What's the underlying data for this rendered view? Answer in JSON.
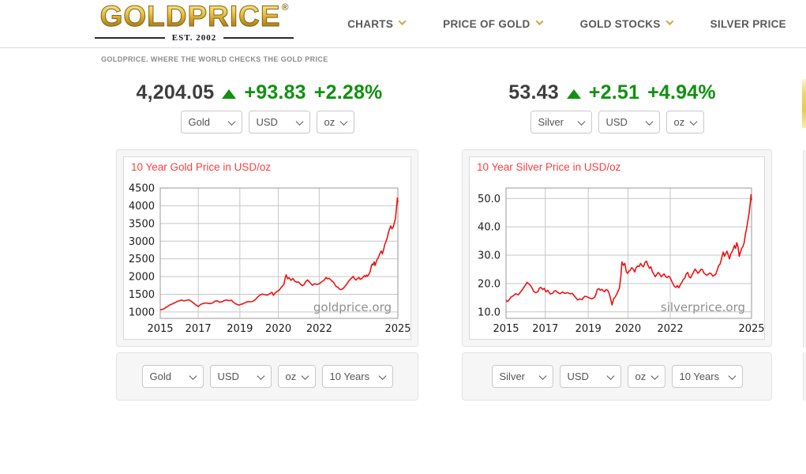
{
  "header": {
    "logo": {
      "text": "GOLDPRICE",
      "reg": "®",
      "est": "EST. 2002"
    },
    "nav": [
      {
        "label": "CHARTS",
        "has_dropdown": true
      },
      {
        "label": "PRICE OF GOLD",
        "has_dropdown": true
      },
      {
        "label": "GOLD STOCKS",
        "has_dropdown": true
      },
      {
        "label": "SILVER PRICE",
        "has_dropdown": false
      }
    ]
  },
  "tagline": "GOLDPRICE. WHERE THE WORLD CHECKS THE GOLD PRICE",
  "colors": {
    "green_up": "#119111",
    "price_text": "#3e3e3e",
    "chart_line_red": "#ee1212",
    "chart_title_red": "#f94141",
    "gold_accent": "#d1a83d",
    "panel_gray": "#f6f6f6"
  },
  "gold": {
    "price": "4,204.05",
    "change": "+93.83",
    "change_pct": "+2.28%",
    "selects_top": [
      "Gold",
      "USD",
      "oz"
    ],
    "selects_bottom": [
      "Gold",
      "USD",
      "oz",
      "10 Years"
    ]
  },
  "silver": {
    "price": "53.43",
    "change": "+2.51",
    "change_pct": "+4.94%",
    "selects_top": [
      "Silver",
      "USD",
      "oz"
    ],
    "selects_bottom": [
      "Silver",
      "USD",
      "oz",
      "10 Years"
    ]
  },
  "chart_data": [
    {
      "type": "line",
      "title": "10 Year Gold Price in USD/oz",
      "watermark": "goldprice.org",
      "line_color": "#ee1212",
      "grid": true,
      "x_ticks": [
        {
          "f": 0,
          "label": "2015"
        },
        {
          "f": 0.16,
          "label": "2017"
        },
        {
          "f": 0.335,
          "label": "2019"
        },
        {
          "f": 0.497,
          "label": "2020"
        },
        {
          "f": 0.669,
          "label": "2022"
        },
        {
          "f": 1,
          "label": "2025"
        }
      ],
      "y_ticks": [
        {
          "v": 1000,
          "label": "1000"
        },
        {
          "v": 1500,
          "label": "1500"
        },
        {
          "v": 2000,
          "label": "2000"
        },
        {
          "v": 2500,
          "label": "2500"
        },
        {
          "v": 3000,
          "label": "3000"
        },
        {
          "v": 3500,
          "label": "3500"
        },
        {
          "v": 4000,
          "label": "4000"
        },
        {
          "v": 4500,
          "label": "4500"
        }
      ],
      "y_range": [
        820,
        4500
      ],
      "points": [
        [
          0,
          1060
        ],
        [
          0.008,
          1072
        ],
        [
          0.015,
          1088
        ],
        [
          0.022,
          1118
        ],
        [
          0.03,
          1152
        ],
        [
          0.04,
          1198
        ],
        [
          0.05,
          1224
        ],
        [
          0.06,
          1258
        ],
        [
          0.07,
          1292
        ],
        [
          0.08,
          1318
        ],
        [
          0.09,
          1336
        ],
        [
          0.1,
          1312
        ],
        [
          0.11,
          1330
        ],
        [
          0.12,
          1344
        ],
        [
          0.13,
          1306
        ],
        [
          0.14,
          1256
        ],
        [
          0.15,
          1196
        ],
        [
          0.16,
          1154
        ],
        [
          0.17,
          1214
        ],
        [
          0.18,
          1236
        ],
        [
          0.19,
          1254
        ],
        [
          0.2,
          1248
        ],
        [
          0.21,
          1236
        ],
        [
          0.22,
          1256
        ],
        [
          0.23,
          1304
        ],
        [
          0.24,
          1316
        ],
        [
          0.25,
          1276
        ],
        [
          0.26,
          1292
        ],
        [
          0.27,
          1326
        ],
        [
          0.28,
          1342
        ],
        [
          0.29,
          1318
        ],
        [
          0.3,
          1332
        ],
        [
          0.305,
          1292
        ],
        [
          0.31,
          1266
        ],
        [
          0.32,
          1224
        ],
        [
          0.33,
          1194
        ],
        [
          0.34,
          1216
        ],
        [
          0.35,
          1236
        ],
        [
          0.36,
          1276
        ],
        [
          0.37,
          1296
        ],
        [
          0.38,
          1288
        ],
        [
          0.39,
          1302
        ],
        [
          0.4,
          1346
        ],
        [
          0.41,
          1422
        ],
        [
          0.42,
          1482
        ],
        [
          0.43,
          1506
        ],
        [
          0.44,
          1488
        ],
        [
          0.45,
          1474
        ],
        [
          0.46,
          1516
        ],
        [
          0.47,
          1556
        ],
        [
          0.476,
          1472
        ],
        [
          0.482,
          1524
        ],
        [
          0.49,
          1576
        ],
        [
          0.5,
          1612
        ],
        [
          0.508,
          1686
        ],
        [
          0.514,
          1732
        ],
        [
          0.52,
          1772
        ],
        [
          0.526,
          1962
        ],
        [
          0.53,
          2048
        ],
        [
          0.536,
          1938
        ],
        [
          0.542,
          1968
        ],
        [
          0.55,
          1892
        ],
        [
          0.558,
          1948
        ],
        [
          0.566,
          1868
        ],
        [
          0.574,
          1842
        ],
        [
          0.582,
          1848
        ],
        [
          0.59,
          1788
        ],
        [
          0.598,
          1738
        ],
        [
          0.606,
          1782
        ],
        [
          0.612,
          1856
        ],
        [
          0.62,
          1904
        ],
        [
          0.63,
          1832
        ],
        [
          0.64,
          1756
        ],
        [
          0.65,
          1796
        ],
        [
          0.66,
          1776
        ],
        [
          0.67,
          1802
        ],
        [
          0.68,
          1856
        ],
        [
          0.69,
          1902
        ],
        [
          0.698,
          1976
        ],
        [
          0.704,
          1936
        ],
        [
          0.71,
          1952
        ],
        [
          0.72,
          1892
        ],
        [
          0.73,
          1832
        ],
        [
          0.74,
          1722
        ],
        [
          0.748,
          1698
        ],
        [
          0.754,
          1646
        ],
        [
          0.76,
          1632
        ],
        [
          0.77,
          1666
        ],
        [
          0.78,
          1746
        ],
        [
          0.786,
          1802
        ],
        [
          0.792,
          1862
        ],
        [
          0.8,
          1926
        ],
        [
          0.806,
          1962
        ],
        [
          0.812,
          2006
        ],
        [
          0.818,
          1936
        ],
        [
          0.824,
          1902
        ],
        [
          0.83,
          1946
        ],
        [
          0.836,
          1976
        ],
        [
          0.842,
          1922
        ],
        [
          0.848,
          1942
        ],
        [
          0.854,
          1992
        ],
        [
          0.86,
          2026
        ],
        [
          0.864,
          1988
        ],
        [
          0.868,
          2042
        ],
        [
          0.872,
          2012
        ],
        [
          0.876,
          2044
        ],
        [
          0.88,
          2088
        ],
        [
          0.884,
          2162
        ],
        [
          0.888,
          2292
        ],
        [
          0.892,
          2352
        ],
        [
          0.896,
          2328
        ],
        [
          0.9,
          2416
        ],
        [
          0.904,
          2312
        ],
        [
          0.908,
          2396
        ],
        [
          0.912,
          2476
        ],
        [
          0.916,
          2512
        ],
        [
          0.92,
          2572
        ],
        [
          0.925,
          2656
        ],
        [
          0.93,
          2722
        ],
        [
          0.935,
          2642
        ],
        [
          0.94,
          2756
        ],
        [
          0.945,
          2906
        ],
        [
          0.95,
          2988
        ],
        [
          0.955,
          3086
        ],
        [
          0.96,
          3242
        ],
        [
          0.965,
          3342
        ],
        [
          0.97,
          3432
        ],
        [
          0.975,
          3348
        ],
        [
          0.98,
          3392
        ],
        [
          0.985,
          3522
        ],
        [
          0.99,
          3642
        ],
        [
          0.993,
          3862
        ],
        [
          0.996,
          4062
        ],
        [
          0.998,
          4222
        ],
        [
          1,
          4096
        ]
      ]
    },
    {
      "type": "line",
      "title": "10 Year Silver Price in USD/oz",
      "watermark": "silverprice.org",
      "line_color": "#ee1212",
      "grid": true,
      "x_ticks": [
        {
          "f": 0,
          "label": "2015"
        },
        {
          "f": 0.16,
          "label": "2017"
        },
        {
          "f": 0.335,
          "label": "2019"
        },
        {
          "f": 0.497,
          "label": "2020"
        },
        {
          "f": 0.669,
          "label": "2022"
        },
        {
          "f": 1,
          "label": "2025"
        }
      ],
      "y_ticks": [
        {
          "v": 10,
          "label": "10.0"
        },
        {
          "v": 20,
          "label": "20.0"
        },
        {
          "v": 30,
          "label": "30.0"
        },
        {
          "v": 40,
          "label": "40.0"
        },
        {
          "v": 50,
          "label": "50.0"
        }
      ],
      "y_range": [
        7.7,
        53.7
      ],
      "points": [
        [
          0,
          14.2
        ],
        [
          0.005,
          13.6
        ],
        [
          0.012,
          14.1
        ],
        [
          0.02,
          15.2
        ],
        [
          0.03,
          15.7
        ],
        [
          0.04,
          16.4
        ],
        [
          0.05,
          16.0
        ],
        [
          0.06,
          17.1
        ],
        [
          0.07,
          18.3
        ],
        [
          0.08,
          19.6
        ],
        [
          0.086,
          20.4
        ],
        [
          0.092,
          19.9
        ],
        [
          0.1,
          19.3
        ],
        [
          0.106,
          18.4
        ],
        [
          0.112,
          17.3
        ],
        [
          0.12,
          16.8
        ],
        [
          0.13,
          17.1
        ],
        [
          0.136,
          18.4
        ],
        [
          0.142,
          18.6
        ],
        [
          0.15,
          17.9
        ],
        [
          0.156,
          18.3
        ],
        [
          0.162,
          17.1
        ],
        [
          0.17,
          17.6
        ],
        [
          0.18,
          16.3
        ],
        [
          0.19,
          16.6
        ],
        [
          0.196,
          17.3
        ],
        [
          0.202,
          17.5
        ],
        [
          0.21,
          16.9
        ],
        [
          0.22,
          16.4
        ],
        [
          0.23,
          17.0
        ],
        [
          0.24,
          16.5
        ],
        [
          0.25,
          16.8
        ],
        [
          0.26,
          16.4
        ],
        [
          0.27,
          16.5
        ],
        [
          0.28,
          15.4
        ],
        [
          0.286,
          14.8
        ],
        [
          0.292,
          14.2
        ],
        [
          0.3,
          14.6
        ],
        [
          0.31,
          14.3
        ],
        [
          0.316,
          15.1
        ],
        [
          0.322,
          15.5
        ],
        [
          0.33,
          15.3
        ],
        [
          0.34,
          14.9
        ],
        [
          0.35,
          14.6
        ],
        [
          0.36,
          15.1
        ],
        [
          0.366,
          16.1
        ],
        [
          0.372,
          17.9
        ],
        [
          0.378,
          18.2
        ],
        [
          0.384,
          17.6
        ],
        [
          0.39,
          18.0
        ],
        [
          0.4,
          17.1
        ],
        [
          0.408,
          17.9
        ],
        [
          0.414,
          17.6
        ],
        [
          0.42,
          16.6
        ],
        [
          0.426,
          14.5
        ],
        [
          0.432,
          12.4
        ],
        [
          0.438,
          14.6
        ],
        [
          0.444,
          15.2
        ],
        [
          0.45,
          16.1
        ],
        [
          0.456,
          17.3
        ],
        [
          0.462,
          18.4
        ],
        [
          0.468,
          22.6
        ],
        [
          0.472,
          27.6
        ],
        [
          0.478,
          26.4
        ],
        [
          0.484,
          27.1
        ],
        [
          0.49,
          24.1
        ],
        [
          0.496,
          23.6
        ],
        [
          0.5,
          24.3
        ],
        [
          0.506,
          24.7
        ],
        [
          0.512,
          25.6
        ],
        [
          0.518,
          25.1
        ],
        [
          0.524,
          24.1
        ],
        [
          0.53,
          25.6
        ],
        [
          0.536,
          26.2
        ],
        [
          0.542,
          26.0
        ],
        [
          0.548,
          27.1
        ],
        [
          0.554,
          26.3
        ],
        [
          0.56,
          25.9
        ],
        [
          0.566,
          27.4
        ],
        [
          0.572,
          27.9
        ],
        [
          0.578,
          26.4
        ],
        [
          0.584,
          25.4
        ],
        [
          0.59,
          25.9
        ],
        [
          0.596,
          24.2
        ],
        [
          0.602,
          23.3
        ],
        [
          0.608,
          22.4
        ],
        [
          0.614,
          23.2
        ],
        [
          0.62,
          23.9
        ],
        [
          0.626,
          23.3
        ],
        [
          0.632,
          22.4
        ],
        [
          0.638,
          22.9
        ],
        [
          0.644,
          23.4
        ],
        [
          0.65,
          22.4
        ],
        [
          0.656,
          22.1
        ],
        [
          0.662,
          22.6
        ],
        [
          0.668,
          22.2
        ],
        [
          0.674,
          21.0
        ],
        [
          0.68,
          19.9
        ],
        [
          0.686,
          19.0
        ],
        [
          0.692,
          18.6
        ],
        [
          0.698,
          19.3
        ],
        [
          0.704,
          18.5
        ],
        [
          0.71,
          19.6
        ],
        [
          0.716,
          20.4
        ],
        [
          0.722,
          21.4
        ],
        [
          0.728,
          21.9
        ],
        [
          0.734,
          23.4
        ],
        [
          0.74,
          23.9
        ],
        [
          0.746,
          22.4
        ],
        [
          0.752,
          22.0
        ],
        [
          0.758,
          23.1
        ],
        [
          0.764,
          24.1
        ],
        [
          0.77,
          25.1
        ],
        [
          0.776,
          24.4
        ],
        [
          0.782,
          23.6
        ],
        [
          0.788,
          24.2
        ],
        [
          0.794,
          25.0
        ],
        [
          0.8,
          24.9
        ],
        [
          0.806,
          23.7
        ],
        [
          0.812,
          23.3
        ],
        [
          0.818,
          22.9
        ],
        [
          0.824,
          23.3
        ],
        [
          0.83,
          23.7
        ],
        [
          0.836,
          23.4
        ],
        [
          0.842,
          22.6
        ],
        [
          0.848,
          22.9
        ],
        [
          0.854,
          23.2
        ],
        [
          0.86,
          24.7
        ],
        [
          0.866,
          26.3
        ],
        [
          0.872,
          26.9
        ],
        [
          0.876,
          28.1
        ],
        [
          0.88,
          29.6
        ],
        [
          0.885,
          31.1
        ],
        [
          0.89,
          29.6
        ],
        [
          0.895,
          30.6
        ],
        [
          0.9,
          31.4
        ],
        [
          0.905,
          30.1
        ],
        [
          0.91,
          28.7
        ],
        [
          0.915,
          30.4
        ],
        [
          0.92,
          31.1
        ],
        [
          0.925,
          32.1
        ],
        [
          0.93,
          33.4
        ],
        [
          0.935,
          32.4
        ],
        [
          0.94,
          34.4
        ],
        [
          0.945,
          32.9
        ],
        [
          0.95,
          29.6
        ],
        [
          0.955,
          31.1
        ],
        [
          0.96,
          32.4
        ],
        [
          0.965,
          33.1
        ],
        [
          0.97,
          34.4
        ],
        [
          0.975,
          37.4
        ],
        [
          0.98,
          39.4
        ],
        [
          0.985,
          42.1
        ],
        [
          0.99,
          44.9
        ],
        [
          0.995,
          48.4
        ],
        [
          0.998,
          51.4
        ],
        [
          1,
          49.4
        ]
      ]
    }
  ]
}
